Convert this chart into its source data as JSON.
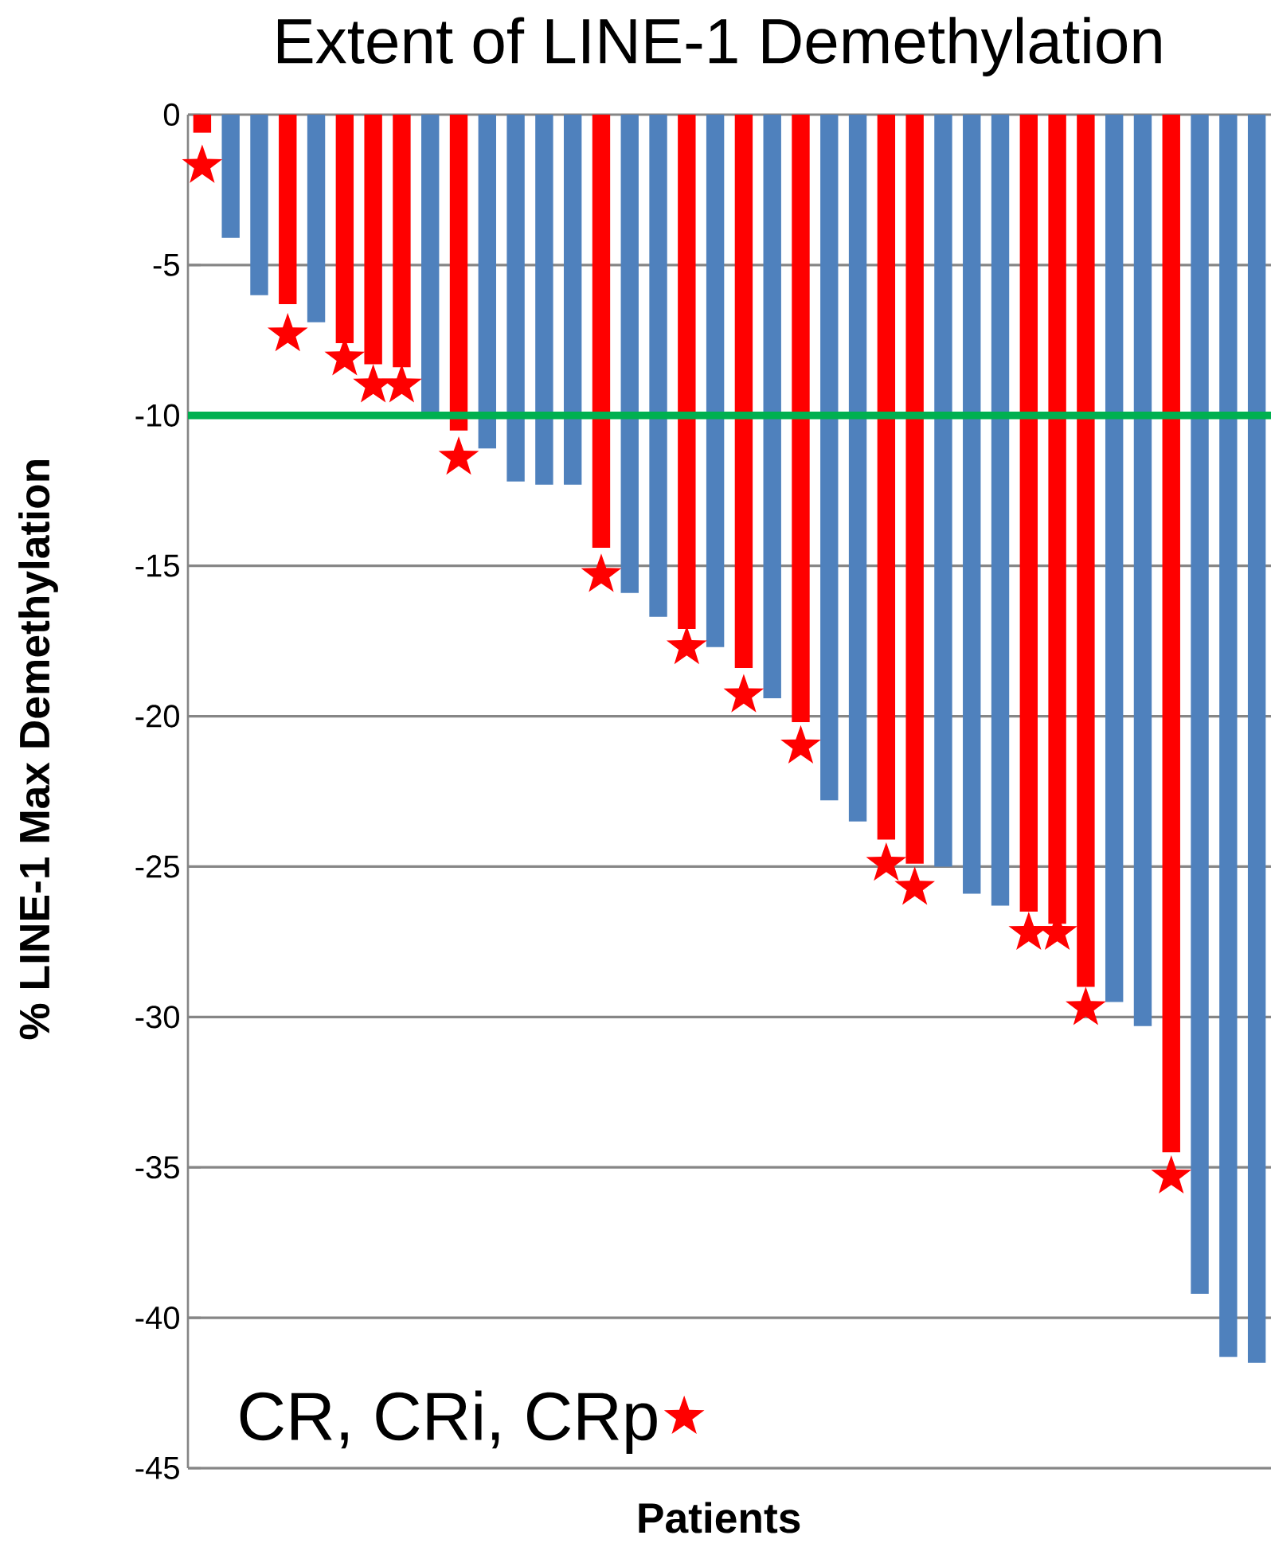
{
  "chart_data": {
    "type": "bar",
    "title": "Extent of LINE-1 Demethylation",
    "xlabel": "Patients",
    "ylabel": "% LINE-1 Max Demethylation",
    "categories": [
      null,
      null,
      null,
      null,
      null,
      null,
      null,
      null,
      null,
      null,
      null,
      null,
      null,
      null,
      null,
      null,
      null,
      null,
      null,
      null,
      null,
      null,
      null,
      null,
      null,
      null,
      null,
      null,
      null,
      null,
      null,
      null,
      null,
      null,
      null,
      null,
      null,
      null
    ],
    "series": [
      {
        "values": [
          -0.6,
          -4.1,
          -6.0,
          -6.3,
          -6.9,
          -7.6,
          -8.3,
          -8.4,
          -10.0,
          -10.5,
          -11.1,
          -12.2,
          -12.3,
          -12.3,
          -14.4,
          -15.9,
          -16.7,
          -17.1,
          -17.7,
          -18.4,
          -19.4,
          -20.2,
          -22.8,
          -23.5,
          -24.1,
          -24.9,
          -25.0,
          -25.9,
          -26.3,
          -26.5,
          -26.9,
          -29.0,
          -29.5,
          -30.3,
          -34.5,
          -39.2,
          -41.3,
          -41.5
        ],
        "colors": [
          "#ff0000",
          "#4f81bd",
          "#4f81bd",
          "#ff0000",
          "#4f81bd",
          "#ff0000",
          "#ff0000",
          "#ff0000",
          "#4f81bd",
          "#ff0000",
          "#4f81bd",
          "#4f81bd",
          "#4f81bd",
          "#4f81bd",
          "#ff0000",
          "#4f81bd",
          "#4f81bd",
          "#ff0000",
          "#4f81bd",
          "#ff0000",
          "#4f81bd",
          "#ff0000",
          "#4f81bd",
          "#4f81bd",
          "#ff0000",
          "#ff0000",
          "#4f81bd",
          "#4f81bd",
          "#4f81bd",
          "#ff0000",
          "#ff0000",
          "#ff0000",
          "#4f81bd",
          "#4f81bd",
          "#ff0000",
          "#4f81bd",
          "#4f81bd",
          "#4f81bd"
        ]
      },
      {
        "type": "scatter",
        "name": "CR, CRi, CRp",
        "color": "#ff0000",
        "marker": "star",
        "values": [
          -1.7,
          null,
          null,
          -7.3,
          null,
          -8.1,
          -9.0,
          -9.0,
          null,
          -11.4,
          null,
          null,
          null,
          null,
          -15.3,
          null,
          null,
          -17.7,
          null,
          -19.3,
          null,
          -21.0,
          null,
          null,
          -24.9,
          -25.7,
          null,
          null,
          null,
          -27.2,
          -27.2,
          -29.7,
          null,
          null,
          -35.3,
          null,
          null,
          null
        ]
      }
    ],
    "ylim": [
      -45,
      0
    ],
    "yticks": [
      0,
      -5,
      -10,
      -15,
      -20,
      -25,
      -30,
      -35,
      -40,
      -45
    ],
    "grid": "y",
    "legend": "bottom left",
    "ref_lines": [
      {
        "axis": "y",
        "value": -10,
        "color": "#00b050"
      }
    ]
  }
}
